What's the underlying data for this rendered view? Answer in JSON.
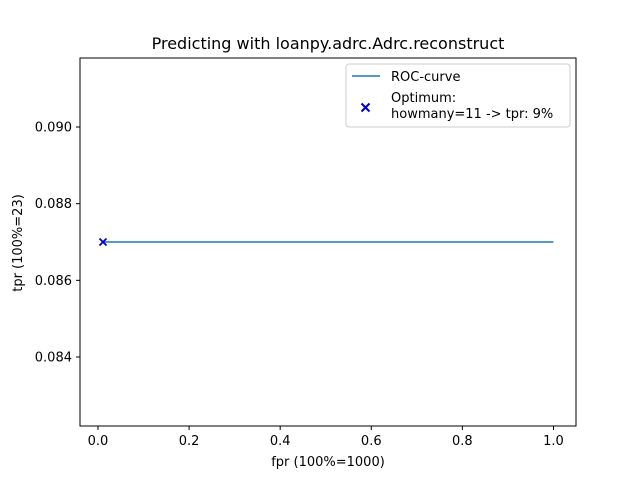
{
  "chart_data": {
    "type": "line",
    "title": "Predicting with loanpy.adrc.Adrc.reconstruct",
    "xlabel": "fpr (100%=1000)",
    "ylabel": "tpr (100%=23)",
    "xlim": [
      -0.0395,
      1.0495
    ],
    "ylim": [
      0.0822,
      0.0918
    ],
    "xticks": [
      0.0,
      0.2,
      0.4,
      0.6,
      0.8,
      1.0
    ],
    "xtick_labels": [
      "0.0",
      "0.2",
      "0.4",
      "0.6",
      "0.8",
      "1.0"
    ],
    "yticks": [
      0.084,
      0.086,
      0.088,
      0.09
    ],
    "ytick_labels": [
      "0.084",
      "0.086",
      "0.088",
      "0.090"
    ],
    "grid": false,
    "legend_position": "top-right",
    "series": [
      {
        "name": "ROC-curve",
        "type": "line",
        "color": "#1f77b4",
        "x": [
          0.011,
          1.0
        ],
        "y": [
          0.087,
          0.087
        ]
      },
      {
        "name": "Optimum:",
        "name_line2": "howmany=11 -> tpr: 9%",
        "type": "scatter",
        "marker": "x",
        "color": "#0000cc",
        "x": [
          0.011
        ],
        "y": [
          0.087
        ]
      }
    ]
  }
}
